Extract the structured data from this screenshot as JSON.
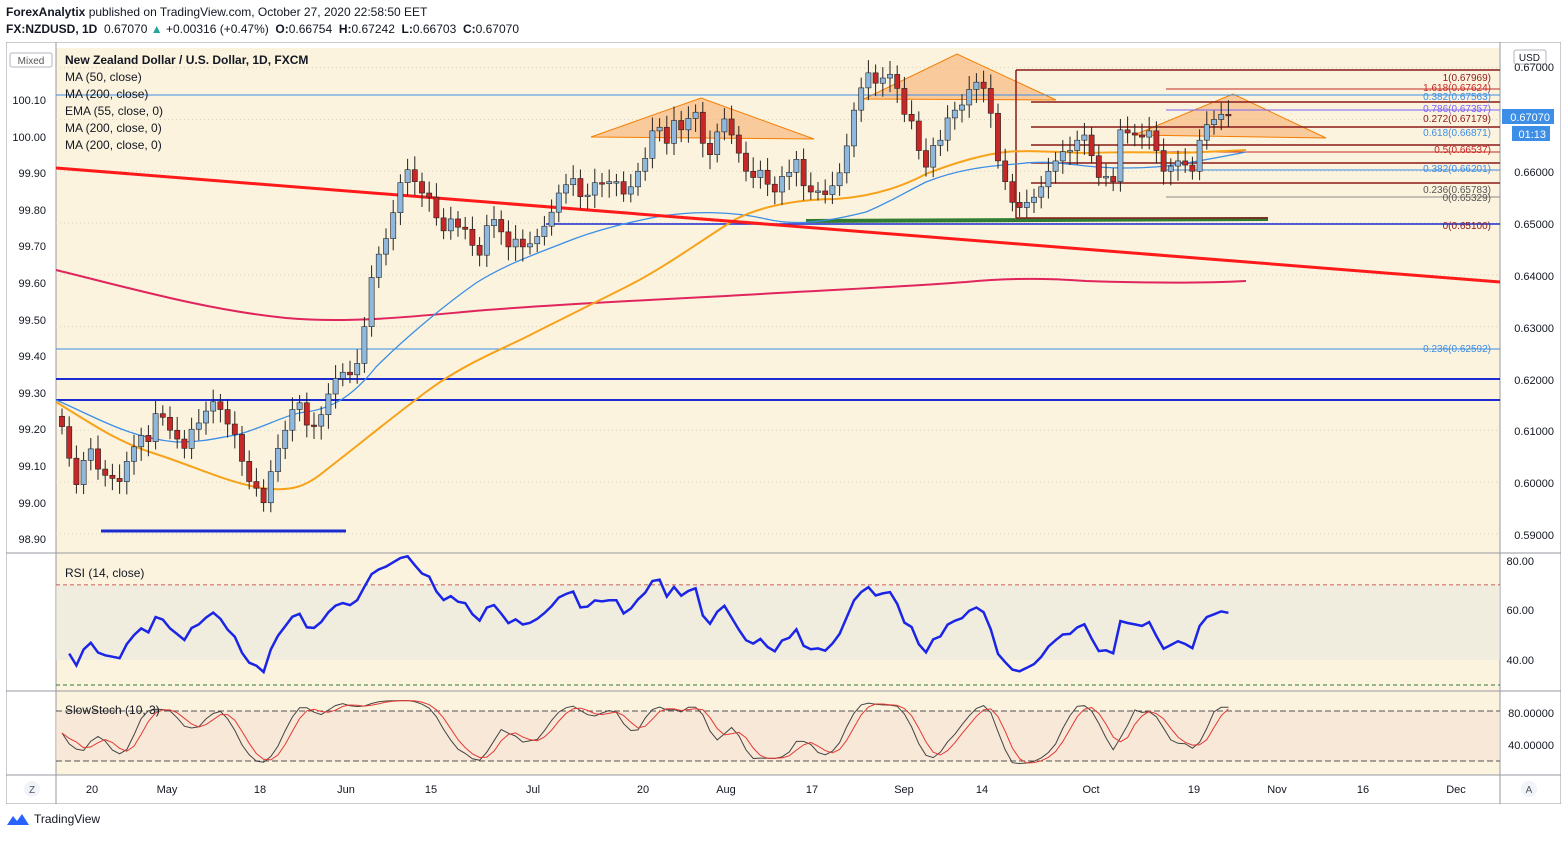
{
  "header": {
    "publisher": "ForexAnalytix",
    "published_text": " published on TradingView.com, October 27, 2020 22:58:50 EET",
    "symbol": "FX:NZDUSD, 1D",
    "last": "0.67070",
    "change_arrow": "▲",
    "change": "+0.00316 (+0.47%)",
    "open_label": "O:",
    "open": "0.66754",
    "high_label": "H:",
    "high": "0.67242",
    "low_label": "L:",
    "low": "0.66703",
    "close_label": "C:",
    "close": "0.67070"
  },
  "main_pane": {
    "mode_label": "Mixed",
    "title": "New Zealand Dollar / U.S. Dollar, 1D, FXCM",
    "indicators": [
      "MA (50, close)",
      "MA (200, close)",
      "EMA (55, close, 0)",
      "MA (200, close, 0)",
      "MA (200, close, 0)"
    ],
    "currency_label": "USD",
    "price_tag": "0.67070",
    "countdown": "01:13",
    "left_scale": [
      "100.10",
      "100.00",
      "99.90",
      "99.80",
      "99.70",
      "99.60",
      "99.50",
      "99.40",
      "99.30",
      "99.20",
      "99.10",
      "99.00",
      "98.90"
    ],
    "right_scale": [
      "0.67000",
      "0.66000",
      "0.65000",
      "0.64000",
      "0.63000",
      "0.62000",
      "0.61000",
      "0.60000",
      "0.59000"
    ],
    "fib_labels": [
      "1(0.67969)",
      "1.618(0.67624)",
      "0.382(0.67563)",
      "0.786(0.67357)",
      "0.272(0.67179)",
      "0.618(0.66871)",
      "0.5(0.66537)",
      "0.382(0.66201)",
      "0.236(0.65783)",
      "0(0.65329)",
      "0(0.65100)",
      "0.236(0.62592)"
    ]
  },
  "rsi_pane": {
    "title": "RSI (14, close)",
    "scale": [
      "80.00",
      "60.00",
      "40.00"
    ]
  },
  "stoch_pane": {
    "title": "SlowStoch (10, 3)",
    "scale": [
      "80.00000",
      "40.00000"
    ]
  },
  "time_axis": {
    "labels": [
      "20",
      "May",
      "18",
      "Jun",
      "15",
      "Jul",
      "20",
      "Aug",
      "17",
      "Sep",
      "14",
      "Oct",
      "19",
      "Nov",
      "16",
      "Dec"
    ],
    "left_button": "Z",
    "right_button": "A"
  },
  "footer": {
    "brand": "TradingView"
  },
  "colors": {
    "background": "#fbf3dd",
    "up_candle": "#8fb8dc",
    "down_candle": "#c62828",
    "trendline": "#ff1a1a",
    "ma50": "#3c8ee6",
    "ema55": "#f7a21b",
    "ma200": "#e0245e",
    "support": "#1a2bd1",
    "rsi_line": "#1a25e6",
    "stoch_k": "#444444",
    "stoch_d": "#e53935",
    "pattern_fill": "#f8b67a"
  },
  "chart_data": {
    "type": "candlestick",
    "symbol": "FX:NZDUSD",
    "timeframe": "1D",
    "title": "New Zealand Dollar / U.S. Dollar, 1D, FXCM",
    "y_range": [
      0.5863,
      0.6838
    ],
    "last_bar": {
      "open": 0.66754,
      "high": 0.67242,
      "low": 0.66703,
      "close": 0.6707
    },
    "fib_levels": [
      {
        "ratio": "1",
        "price": 0.67969
      },
      {
        "ratio": "1.618",
        "price": 0.67624
      },
      {
        "ratio": "0.382",
        "price": 0.67563
      },
      {
        "ratio": "0.786",
        "price": 0.67357
      },
      {
        "ratio": "0.272",
        "price": 0.67179
      },
      {
        "ratio": "0.618",
        "price": 0.66871
      },
      {
        "ratio": "0.5",
        "price": 0.66537
      },
      {
        "ratio": "0.382",
        "price": 0.66201
      },
      {
        "ratio": "0.236",
        "price": 0.65783
      },
      {
        "ratio": "0",
        "price": 0.65329
      },
      {
        "ratio": "0",
        "price": 0.651
      },
      {
        "ratio": "0.236",
        "price": 0.62592
      }
    ],
    "horizontal_levels": [
      0.651,
      0.62,
      0.616
    ],
    "closes": [
      0.6107,
      0.6046,
      0.5995,
      0.6042,
      0.6064,
      0.6025,
      0.6013,
      0.6007,
      0.6001,
      0.604,
      0.6068,
      0.609,
      0.6078,
      0.6132,
      0.6125,
      0.61,
      0.6083,
      0.6065,
      0.6102,
      0.6114,
      0.6137,
      0.6155,
      0.614,
      0.6112,
      0.6092,
      0.604,
      0.6001,
      0.5988,
      0.596,
      0.602,
      0.6065,
      0.61,
      0.614,
      0.6153,
      0.611,
      0.6108,
      0.613,
      0.617,
      0.62,
      0.6212,
      0.6207,
      0.6229,
      0.63,
      0.6395,
      0.644,
      0.647,
      0.652,
      0.6578,
      0.6603,
      0.658,
      0.6558,
      0.655,
      0.651,
      0.6485,
      0.6508,
      0.6492,
      0.6488,
      0.6457,
      0.6438,
      0.6495,
      0.6507,
      0.6483,
      0.6454,
      0.6469,
      0.6454,
      0.646,
      0.6474,
      0.6494,
      0.6521,
      0.6558,
      0.6574,
      0.6586,
      0.6551,
      0.6554,
      0.6578,
      0.6576,
      0.658,
      0.658,
      0.6556,
      0.657,
      0.66,
      0.6625,
      0.6678,
      0.6685,
      0.6654,
      0.6698,
      0.668,
      0.6702,
      0.6714,
      0.6654,
      0.6632,
      0.6676,
      0.6701,
      0.667,
      0.6635,
      0.66,
      0.6588,
      0.6602,
      0.6575,
      0.656,
      0.659,
      0.6598,
      0.6623,
      0.6572,
      0.656,
      0.6562,
      0.6555,
      0.6572,
      0.6597,
      0.6649,
      0.6718,
      0.6761,
      0.679,
      0.677,
      0.678,
      0.6787,
      0.676,
      0.671,
      0.6697,
      0.664,
      0.6608,
      0.665,
      0.666,
      0.6703,
      0.6718,
      0.6728,
      0.6758,
      0.6772,
      0.676,
      0.6712,
      0.662,
      0.658,
      0.654,
      0.653,
      0.654,
      0.655,
      0.657,
      0.66,
      0.662,
      0.6638,
      0.664,
      0.666,
      0.667,
      0.663,
      0.6588,
      0.659,
      0.658,
      0.668,
      0.6674,
      0.667,
      0.6666,
      0.6678,
      0.664,
      0.66,
      0.661,
      0.662,
      0.6612,
      0.66,
      0.666,
      0.669,
      0.67,
      0.671,
      0.6707
    ],
    "rsi_range": [
      25,
      87
    ],
    "rsi_levels": [
      70,
      30
    ],
    "stoch_range": [
      0,
      100
    ],
    "stoch_levels": [
      80,
      20
    ]
  }
}
